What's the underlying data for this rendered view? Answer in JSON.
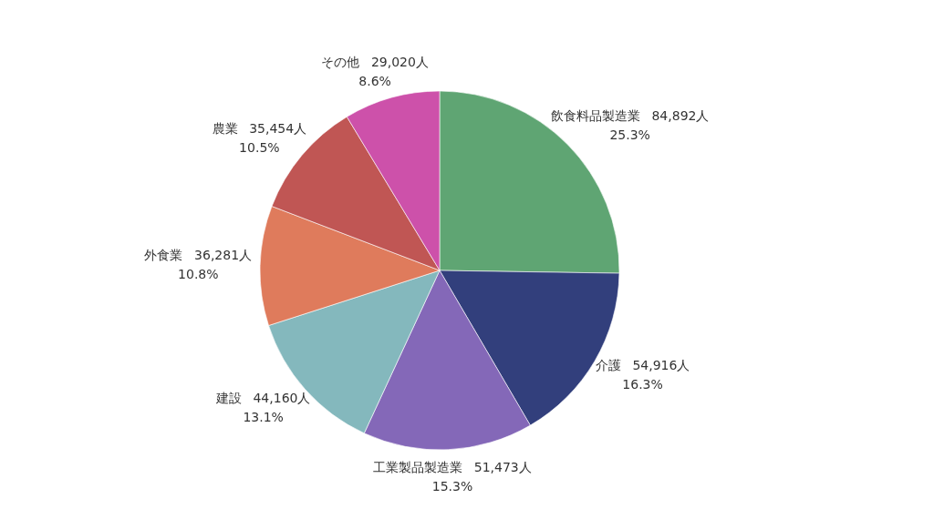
{
  "chart_data": {
    "type": "pie",
    "categories": [
      "飲食料品製造業",
      "介護",
      "工業製品製造業",
      "建設",
      "外食業",
      "農業",
      "その他"
    ],
    "values": [
      84892,
      54916,
      51473,
      44160,
      36281,
      35454,
      29020
    ],
    "colors": [
      "#5fa573",
      "#323f7c",
      "#8468b8",
      "#84b8bd",
      "#df7b5c",
      "#c05654",
      "#cd51aa"
    ],
    "value_labels": [
      "84,892人 25.3%",
      "54,916人 16.3%",
      "51,473人 15.3%",
      "44,160人 13.1%",
      "36,281人 10.8%",
      "35,454人 10.5%",
      "29,020人 8.6%"
    ]
  }
}
